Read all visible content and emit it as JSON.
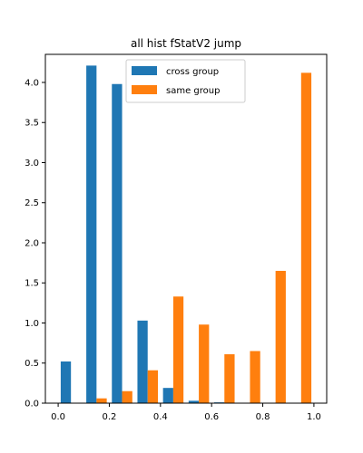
{
  "chart_data": {
    "type": "bar",
    "title": "all hist fStatV2 jump",
    "xlabel": "",
    "ylabel": "",
    "xlim": [
      -0.05,
      1.05
    ],
    "ylim": [
      0,
      4.35
    ],
    "xticks": [
      0.0,
      0.2,
      0.4,
      0.6,
      0.8,
      1.0
    ],
    "xtick_labels": [
      "0.0",
      "0.2",
      "0.4",
      "0.6",
      "0.8",
      "1.0"
    ],
    "yticks": [
      0.0,
      0.5,
      1.0,
      1.5,
      2.0,
      2.5,
      3.0,
      3.5,
      4.0
    ],
    "ytick_labels": [
      "0.0",
      "0.5",
      "1.0",
      "1.5",
      "2.0",
      "2.5",
      "3.0",
      "3.5",
      "4.0"
    ],
    "bin_edges": [
      0.0,
      0.1,
      0.2,
      0.3,
      0.4,
      0.5,
      0.6,
      0.7,
      0.8,
      0.9,
      1.0
    ],
    "legend_position": "upper center",
    "series": [
      {
        "name": "cross group",
        "color": "#1f77b4",
        "values": [
          0.52,
          4.21,
          3.98,
          1.03,
          0.19,
          0.03,
          0.01,
          0.0,
          0.0,
          0.0
        ]
      },
      {
        "name": "same group",
        "color": "#ff7f0e",
        "values": [
          0.0,
          0.06,
          0.15,
          0.41,
          1.33,
          0.98,
          0.61,
          0.65,
          1.65,
          4.12
        ]
      }
    ]
  }
}
